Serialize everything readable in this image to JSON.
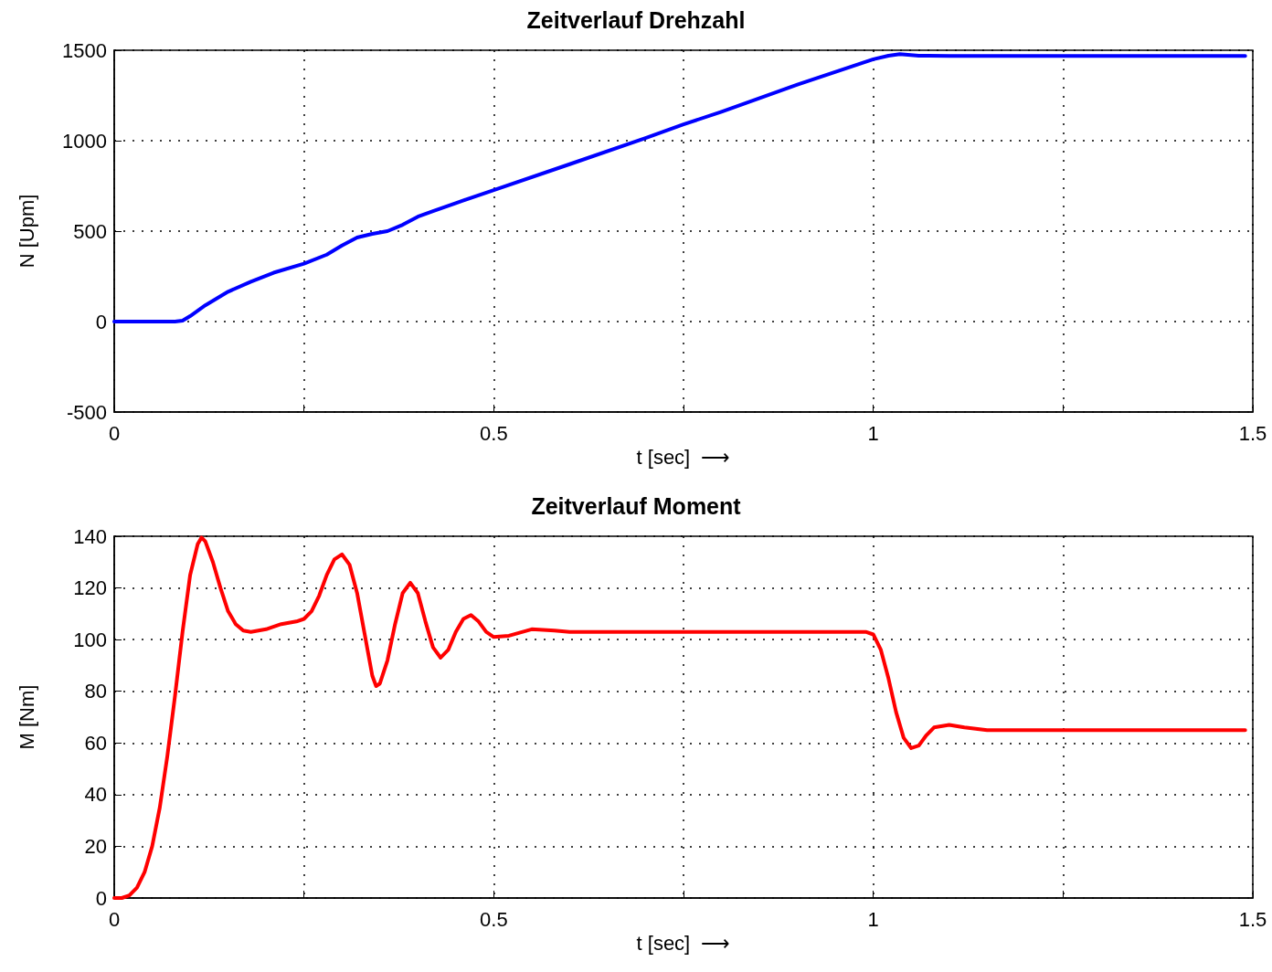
{
  "chart_data": [
    {
      "type": "line",
      "title": "Zeitverlauf Drehzahl",
      "xlabel": "t [sec]  ⟶",
      "ylabel": "N [Upm]",
      "xlim": [
        0,
        1.5
      ],
      "ylim": [
        -500,
        1500
      ],
      "xticks": [
        0,
        {
          "value": 0.25,
          "label": null
        },
        0.5,
        {
          "value": 0.75,
          "label": null
        },
        1,
        {
          "value": 1.25,
          "label": null
        },
        1.5
      ],
      "yticks": [
        -500,
        0,
        500,
        1000,
        1500
      ],
      "grid": true,
      "marker": "none",
      "line_style": "solid",
      "series": [
        {
          "color": "#0000ff",
          "x": [
            0,
            0.04,
            0.08,
            0.09,
            0.1,
            0.12,
            0.15,
            0.18,
            0.21,
            0.25,
            0.28,
            0.3,
            0.32,
            0.34,
            0.36,
            0.38,
            0.4,
            0.42,
            0.45,
            0.5,
            0.6,
            0.7,
            0.75,
            0.8,
            0.9,
            1.0,
            1.02,
            1.035,
            1.06,
            1.1,
            1.2,
            1.3,
            1.49
          ],
          "values": [
            0,
            0,
            0,
            5,
            30,
            90,
            165,
            220,
            270,
            320,
            370,
            420,
            465,
            485,
            500,
            535,
            580,
            610,
            655,
            727,
            870,
            1015,
            1090,
            1160,
            1310,
            1450,
            1470,
            1478,
            1470,
            1468,
            1468,
            1468,
            1468
          ]
        }
      ]
    },
    {
      "type": "line",
      "title": "Zeitverlauf Moment",
      "xlabel": "t [sec]  ⟶",
      "ylabel": "M [Nm]",
      "xlim": [
        0,
        1.5
      ],
      "ylim": [
        0,
        140
      ],
      "xticks": [
        0,
        {
          "value": 0.25,
          "label": null
        },
        0.5,
        {
          "value": 0.75,
          "label": null
        },
        1,
        {
          "value": 1.25,
          "label": null
        },
        1.5
      ],
      "yticks": [
        0,
        20,
        40,
        60,
        80,
        100,
        120,
        140
      ],
      "grid": true,
      "marker": "none",
      "line_style": "solid",
      "series": [
        {
          "color": "#ff0000",
          "x": [
            0,
            0.01,
            0.02,
            0.03,
            0.04,
            0.05,
            0.06,
            0.07,
            0.08,
            0.09,
            0.1,
            0.11,
            0.115,
            0.12,
            0.13,
            0.14,
            0.15,
            0.16,
            0.17,
            0.18,
            0.2,
            0.22,
            0.24,
            0.25,
            0.26,
            0.27,
            0.28,
            0.29,
            0.3,
            0.31,
            0.32,
            0.33,
            0.34,
            0.345,
            0.35,
            0.36,
            0.37,
            0.38,
            0.39,
            0.4,
            0.41,
            0.42,
            0.43,
            0.44,
            0.45,
            0.46,
            0.47,
            0.48,
            0.49,
            0.5,
            0.52,
            0.55,
            0.58,
            0.6,
            0.7,
            0.8,
            0.9,
            0.99,
            1.0,
            1.01,
            1.02,
            1.03,
            1.04,
            1.05,
            1.06,
            1.07,
            1.08,
            1.1,
            1.12,
            1.15,
            1.2,
            1.3,
            1.4,
            1.49
          ],
          "values": [
            0,
            0,
            1,
            4,
            10,
            20,
            35,
            55,
            78,
            103,
            125,
            137,
            139.5,
            138,
            130,
            120,
            111,
            106,
            103.5,
            103,
            104,
            106,
            107,
            108,
            111,
            117,
            125,
            131,
            133,
            129,
            118,
            102,
            86,
            82,
            83,
            92,
            106,
            118,
            122,
            118,
            107,
            97,
            93,
            96,
            103,
            108,
            109.5,
            107,
            103,
            101,
            101.5,
            104,
            103.5,
            103,
            103,
            103,
            103,
            103,
            102,
            96,
            85,
            72,
            62,
            58,
            59,
            63,
            66,
            67,
            66,
            65,
            65,
            65,
            65,
            65
          ]
        }
      ]
    }
  ]
}
